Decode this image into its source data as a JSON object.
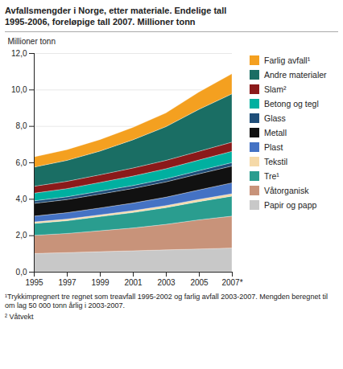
{
  "chart_data": {
    "type": "area",
    "stacked": true,
    "title": "Avfallsmengder i Norge, etter materiale. Endelige tall\n1995-2006, foreløpige tall 2007. Millioner tonn",
    "ylabel": "Millioner tonn",
    "x": [
      1995,
      1997,
      1999,
      2001,
      2003,
      2005,
      2007
    ],
    "xlim": [
      1995,
      2007
    ],
    "xticks": [
      1995,
      1997,
      1999,
      2001,
      2003,
      2005,
      {
        "value": 2007,
        "label": "2007*"
      }
    ],
    "ylim": [
      0,
      12.0
    ],
    "yticks": [
      {
        "value": 0,
        "label": "0,0"
      },
      {
        "value": 2.0,
        "label": "2,0"
      },
      {
        "value": 4.0,
        "label": "4,0"
      },
      {
        "value": 6.0,
        "label": "6,0"
      },
      {
        "value": 8.0,
        "label": "8,0"
      },
      {
        "value": 10.0,
        "label": "10,0"
      },
      {
        "value": 12.0,
        "label": "12,0"
      }
    ],
    "grid": true,
    "legend": "right",
    "series": [
      {
        "name": "Papir og papp",
        "color": "#c8c8c8",
        "values": [
          1.0,
          1.05,
          1.1,
          1.15,
          1.2,
          1.25,
          1.3
        ]
      },
      {
        "name": "Våtorganisk",
        "color": "#c8937a",
        "values": [
          1.0,
          1.05,
          1.15,
          1.25,
          1.4,
          1.6,
          1.75
        ]
      },
      {
        "name": "Tre¹",
        "color": "#2a9d8f",
        "values": [
          0.65,
          0.7,
          0.78,
          0.85,
          0.92,
          1.0,
          1.1
        ]
      },
      {
        "name": "Tekstil",
        "color": "#f5d9a8",
        "values": [
          0.08,
          0.09,
          0.09,
          0.1,
          0.11,
          0.12,
          0.13
        ]
      },
      {
        "name": "Plast",
        "color": "#4472c4",
        "values": [
          0.32,
          0.35,
          0.38,
          0.42,
          0.46,
          0.52,
          0.6
        ]
      },
      {
        "name": "Metall",
        "color": "#111111",
        "values": [
          0.7,
          0.72,
          0.76,
          0.8,
          0.84,
          0.88,
          0.92
        ]
      },
      {
        "name": "Glass",
        "color": "#1f4e79",
        "values": [
          0.14,
          0.15,
          0.16,
          0.16,
          0.17,
          0.18,
          0.19
        ]
      },
      {
        "name": "Betong og tegl",
        "color": "#00b0a0",
        "values": [
          0.42,
          0.45,
          0.48,
          0.52,
          0.55,
          0.58,
          0.62
        ]
      },
      {
        "name": "Slam²",
        "color": "#8b1a1a",
        "values": [
          0.38,
          0.4,
          0.42,
          0.44,
          0.46,
          0.48,
          0.5
        ]
      },
      {
        "name": "Andre materialer",
        "color": "#1a6e64",
        "values": [
          1.05,
          1.15,
          1.3,
          1.55,
          1.85,
          2.3,
          2.65
        ]
      },
      {
        "name": "Farlig avfall¹",
        "color": "#f4a020",
        "values": [
          0.56,
          0.59,
          0.63,
          0.68,
          0.75,
          0.95,
          1.1
        ]
      }
    ],
    "annotations": [
      "¹Trykkimpregnert tre regnet som treavfall 1995-2002 og farlig avfall 2003-2007. Mengden beregnet til\nom lag 50 000 tonn årlig i 2003-2007.",
      "² Våtvekt"
    ]
  }
}
